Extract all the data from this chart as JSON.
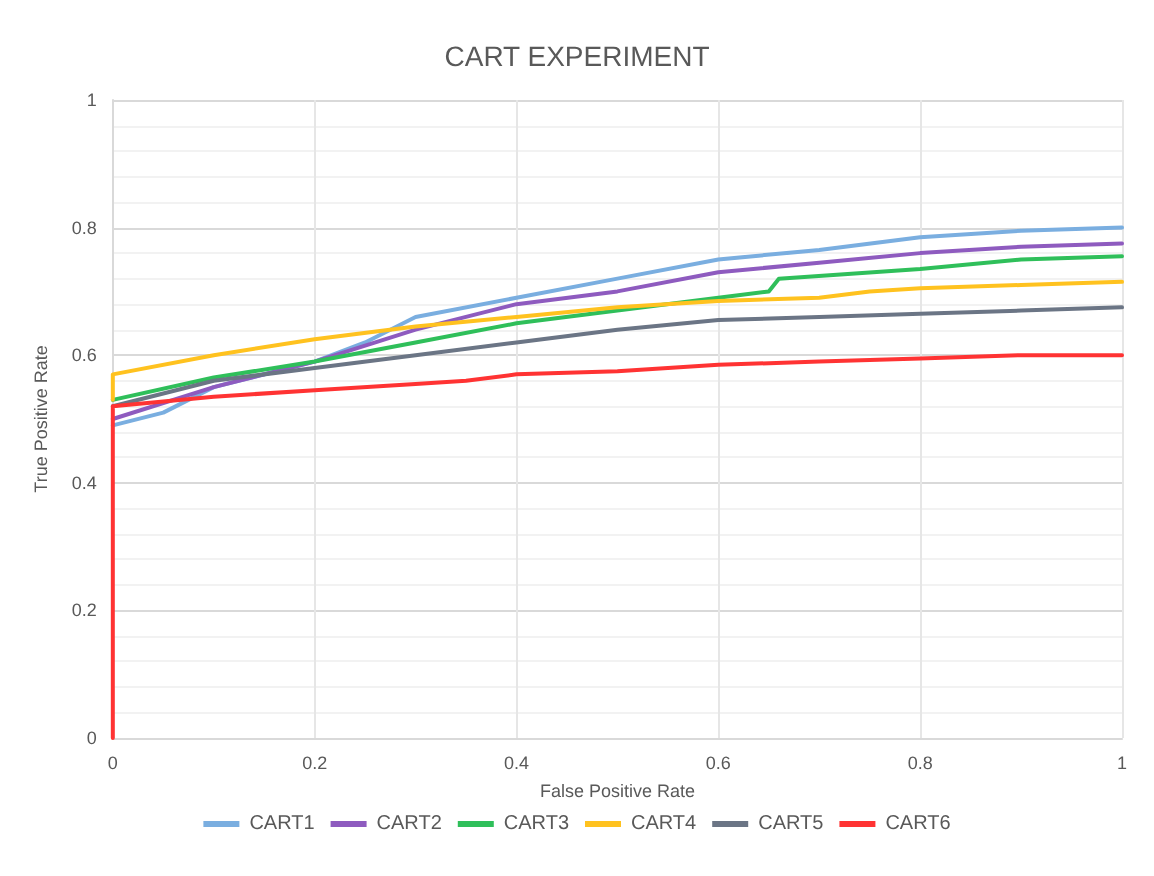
{
  "chart_data": {
    "type": "line",
    "title": "CART EXPERIMENT",
    "xlabel": "False Positive Rate",
    "ylabel": "True Positive Rate",
    "xlim": [
      0,
      1
    ],
    "ylim": [
      0,
      1
    ],
    "xticks": [
      0,
      0.2,
      0.4,
      0.6,
      0.8,
      1
    ],
    "yticks": [
      0,
      0.2,
      0.4,
      0.6,
      0.8,
      1
    ],
    "grid": true,
    "legend": "bottom",
    "marker": "none",
    "line_style": "solid",
    "series": [
      {
        "name": "CART1",
        "color": "#7aaee0",
        "x": [
          0,
          0.05,
          0.1,
          0.2,
          0.25,
          0.3,
          0.4,
          0.5,
          0.6,
          0.7,
          0.8,
          0.9,
          1
        ],
        "values": [
          0.49,
          0.51,
          0.55,
          0.59,
          0.62,
          0.66,
          0.69,
          0.72,
          0.75,
          0.765,
          0.785,
          0.795,
          0.8
        ]
      },
      {
        "name": "CART2",
        "color": "#8e5bbf",
        "x": [
          0,
          0.1,
          0.2,
          0.3,
          0.4,
          0.5,
          0.6,
          0.7,
          0.8,
          0.9,
          1
        ],
        "values": [
          0.5,
          0.55,
          0.59,
          0.64,
          0.68,
          0.7,
          0.73,
          0.745,
          0.76,
          0.77,
          0.775
        ]
      },
      {
        "name": "CART3",
        "color": "#2fbf5a",
        "x": [
          0,
          0.1,
          0.2,
          0.3,
          0.4,
          0.5,
          0.6,
          0.65,
          0.66,
          0.8,
          0.9,
          1
        ],
        "values": [
          0.53,
          0.565,
          0.59,
          0.62,
          0.65,
          0.67,
          0.69,
          0.7,
          0.72,
          0.735,
          0.75,
          0.755
        ]
      },
      {
        "name": "CART4",
        "color": "#ffc21f",
        "x": [
          0,
          0,
          0.1,
          0.2,
          0.3,
          0.4,
          0.5,
          0.6,
          0.7,
          0.75,
          0.8,
          0.9,
          1
        ],
        "values": [
          0.53,
          0.57,
          0.6,
          0.625,
          0.645,
          0.66,
          0.675,
          0.685,
          0.69,
          0.7,
          0.705,
          0.71,
          0.715
        ]
      },
      {
        "name": "CART5",
        "color": "#6b7585",
        "x": [
          0,
          0.1,
          0.2,
          0.3,
          0.4,
          0.5,
          0.6,
          0.7,
          0.8,
          0.9,
          1
        ],
        "values": [
          0.52,
          0.56,
          0.58,
          0.6,
          0.62,
          0.64,
          0.655,
          0.66,
          0.665,
          0.67,
          0.675
        ]
      },
      {
        "name": "CART6",
        "color": "#ff3333",
        "x": [
          0,
          0,
          0.1,
          0.2,
          0.3,
          0.35,
          0.4,
          0.5,
          0.6,
          0.7,
          0.8,
          0.9,
          1
        ],
        "values": [
          0,
          0.52,
          0.535,
          0.545,
          0.555,
          0.56,
          0.57,
          0.575,
          0.585,
          0.59,
          0.595,
          0.6,
          0.6
        ]
      }
    ]
  }
}
